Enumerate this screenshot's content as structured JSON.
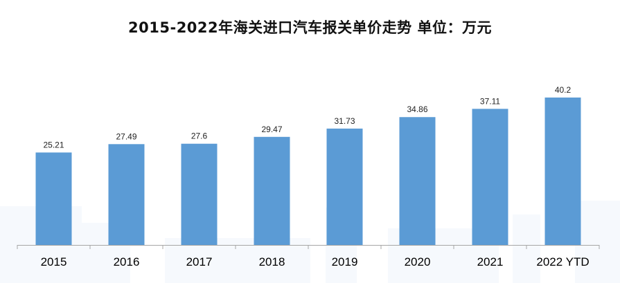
{
  "chart_data": {
    "type": "bar",
    "title": "2015-2022年海关进口汽车报关单价走势  单位：万元",
    "categories": [
      "2015",
      "2016",
      "2017",
      "2018",
      "2019",
      "2020",
      "2021",
      "2022 YTD"
    ],
    "values": [
      25.21,
      27.49,
      27.6,
      29.47,
      31.73,
      34.86,
      37.11,
      40.2
    ],
    "value_labels": [
      "25.21",
      "27.49",
      "27.6",
      "29.47",
      "31.73",
      "34.86",
      "37.11",
      "40.2"
    ],
    "xlabel": "",
    "ylabel": "",
    "ylim": [
      0,
      45
    ],
    "grid": false,
    "legend": "none",
    "bar_color": "#5b9bd5",
    "background_accent_color": "#eef4fb"
  }
}
